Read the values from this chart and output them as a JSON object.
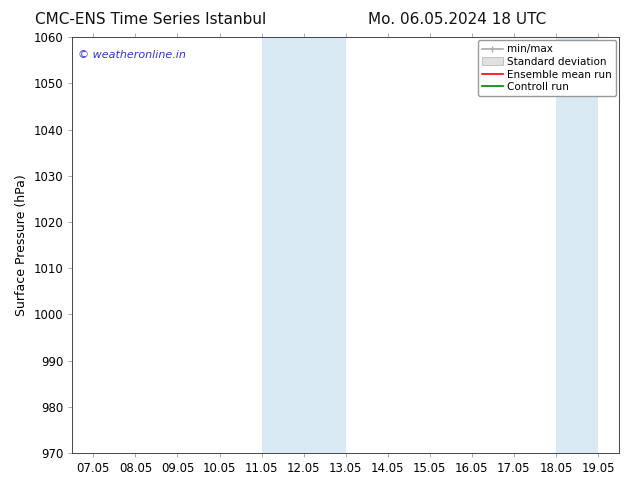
{
  "title_left": "CMC-ENS Time Series Istanbul",
  "title_right": "Mo. 06.05.2024 18 UTC",
  "ylabel": "Surface Pressure (hPa)",
  "ylim": [
    970,
    1060
  ],
  "yticks": [
    970,
    980,
    990,
    1000,
    1010,
    1020,
    1030,
    1040,
    1050,
    1060
  ],
  "xtick_labels": [
    "07.05",
    "08.05",
    "09.05",
    "10.05",
    "11.05",
    "12.05",
    "13.05",
    "14.05",
    "15.05",
    "16.05",
    "17.05",
    "18.05",
    "19.05"
  ],
  "xtick_positions": [
    0,
    1,
    2,
    3,
    4,
    5,
    6,
    7,
    8,
    9,
    10,
    11,
    12
  ],
  "shaded_bands": [
    {
      "x_start": 4,
      "x_end": 5
    },
    {
      "x_start": 5,
      "x_end": 6
    },
    {
      "x_start": 11,
      "x_end": 12
    }
  ],
  "shaded_color": "#daeaf5",
  "watermark_text": "© weatheronline.in",
  "watermark_color": "#3333cc",
  "legend_labels": [
    "min/max",
    "Standard deviation",
    "Ensemble mean run",
    "Controll run"
  ],
  "legend_line_colors": [
    "#aaaaaa",
    "#cccccc",
    "#ff0000",
    "#008000"
  ],
  "background_color": "#ffffff",
  "title_fontsize": 11,
  "ylabel_fontsize": 9,
  "tick_fontsize": 8.5,
  "legend_fontsize": 7.5
}
